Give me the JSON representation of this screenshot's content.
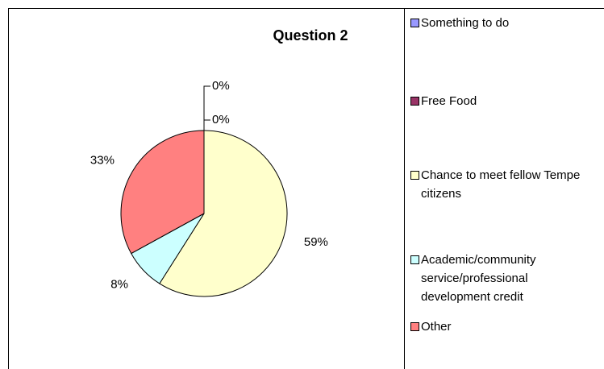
{
  "chart_data": {
    "type": "pie",
    "title": "Question 2",
    "categories": [
      "Something to do",
      "Free Food",
      "Chance to meet fellow Tempe citizens",
      "Academic/community service/professional development credit",
      "Other"
    ],
    "values": [
      0,
      0,
      59,
      8,
      33
    ],
    "value_labels": [
      "0%",
      "0%",
      "59%",
      "8%",
      "33%"
    ],
    "colors": [
      "#9999FF",
      "#993366",
      "#FFFFCC",
      "#CCFFFF",
      "#FF8080"
    ],
    "legend": "right"
  }
}
